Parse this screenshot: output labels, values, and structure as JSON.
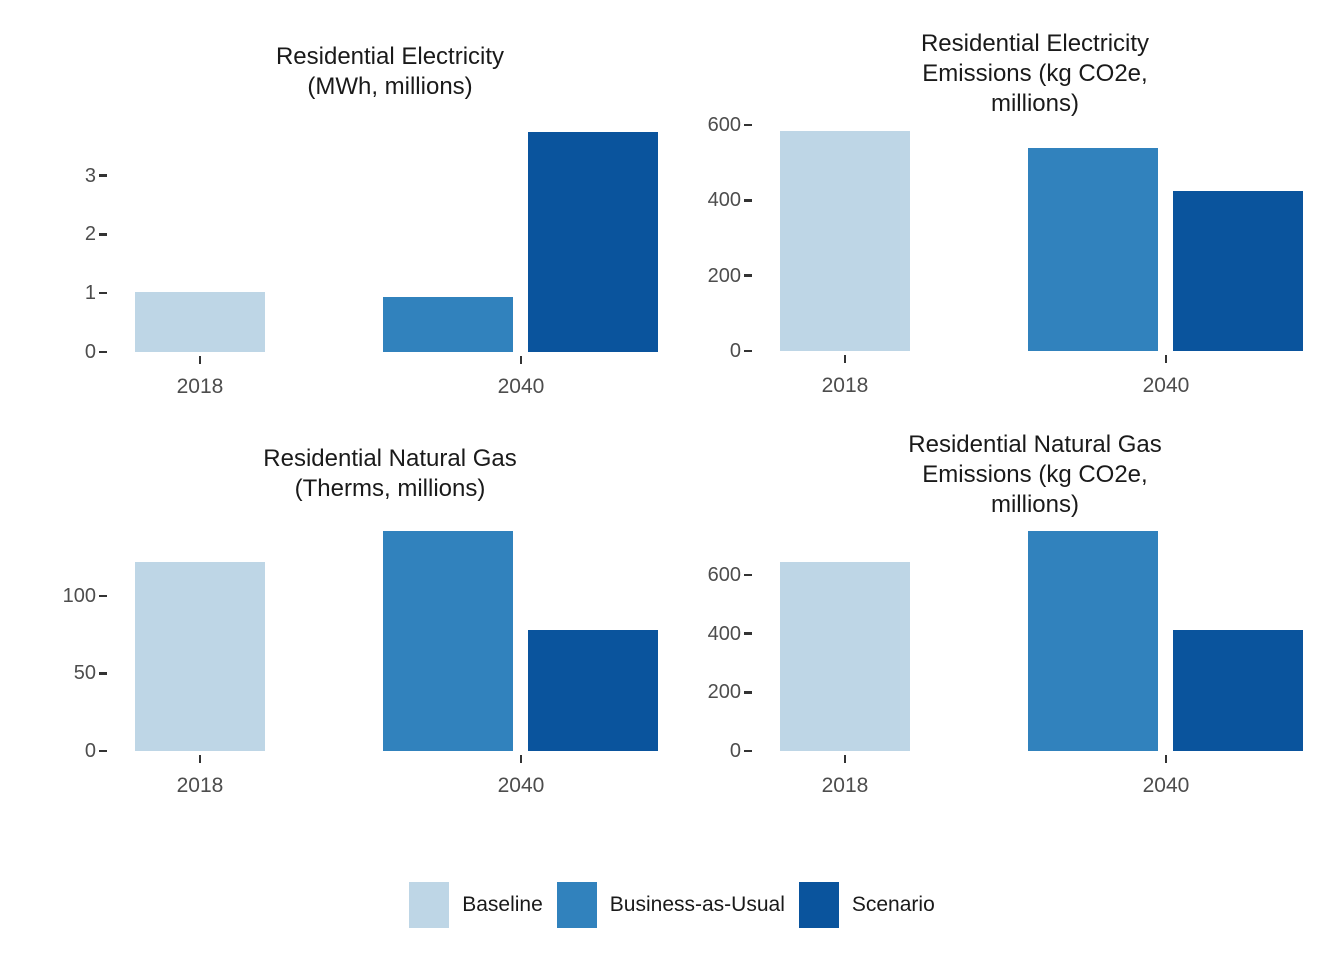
{
  "chart_data": [
    {
      "type": "bar",
      "title": "Residential Electricity\n(MWh, millions)",
      "xlabel": "",
      "ylabel": "",
      "categories": [
        "2018",
        "2040"
      ],
      "series": [
        {
          "name": "Baseline",
          "color": "#bed6e6",
          "values": [
            1.02,
            null
          ]
        },
        {
          "name": "Business-as-Usual",
          "color": "#3182bd",
          "values": [
            null,
            0.94
          ]
        },
        {
          "name": "Scenario",
          "color": "#0a549d",
          "values": [
            null,
            3.75
          ]
        }
      ],
      "yticks": [
        0,
        1,
        2,
        3
      ],
      "ylim": [
        0,
        3.93
      ],
      "grid": false
    },
    {
      "type": "bar",
      "title": "Residential Electricity\nEmissions (kg CO2e,\nmillions)",
      "xlabel": "",
      "ylabel": "",
      "categories": [
        "2018",
        "2040"
      ],
      "series": [
        {
          "name": "Baseline",
          "color": "#bed6e6",
          "values": [
            585,
            null
          ]
        },
        {
          "name": "Business-as-Usual",
          "color": "#3182bd",
          "values": [
            null,
            540
          ]
        },
        {
          "name": "Scenario",
          "color": "#0a549d",
          "values": [
            null,
            425
          ]
        }
      ],
      "yticks": [
        0,
        200,
        400,
        600
      ],
      "ylim": [
        0,
        613
      ],
      "grid": false
    },
    {
      "type": "bar",
      "title": "Residential Natural Gas\n(Therms, millions)",
      "xlabel": "",
      "ylabel": "",
      "categories": [
        "2018",
        "2040"
      ],
      "series": [
        {
          "name": "Baseline",
          "color": "#bed6e6",
          "values": [
            122,
            null
          ]
        },
        {
          "name": "Business-as-Usual",
          "color": "#3182bd",
          "values": [
            null,
            142
          ]
        },
        {
          "name": "Scenario",
          "color": "#0a549d",
          "values": [
            null,
            78
          ]
        }
      ],
      "yticks": [
        0,
        50,
        100
      ],
      "ylim": [
        0,
        149
      ],
      "grid": false
    },
    {
      "type": "bar",
      "title": "Residential Natural Gas\nEmissions (kg CO2e,\nmillions)",
      "xlabel": "",
      "ylabel": "",
      "categories": [
        "2018",
        "2040"
      ],
      "series": [
        {
          "name": "Baseline",
          "color": "#bed6e6",
          "values": [
            645,
            null
          ]
        },
        {
          "name": "Business-as-Usual",
          "color": "#3182bd",
          "values": [
            null,
            750
          ]
        },
        {
          "name": "Scenario",
          "color": "#0a549d",
          "values": [
            null,
            414
          ]
        }
      ],
      "yticks": [
        0,
        200,
        400,
        600
      ],
      "ylim": [
        0,
        788
      ],
      "grid": false
    }
  ],
  "legend": {
    "position": "bottom",
    "entries": [
      {
        "label": "Baseline",
        "color": "#bed6e6"
      },
      {
        "label": "Business-as-Usual",
        "color": "#3182bd"
      },
      {
        "label": "Scenario",
        "color": "#0a549d"
      }
    ]
  },
  "colors": {
    "baseline": "#bed6e6",
    "business_as_usual": "#3182bd",
    "scenario": "#0a549d",
    "axis_text": "#4d4d4d",
    "title_text": "#1a1a1a",
    "tick_mark": "#333333"
  }
}
